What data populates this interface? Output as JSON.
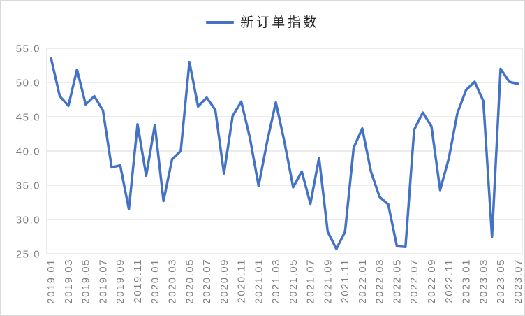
{
  "colors": {
    "line": "#4472C4",
    "gridline": "#D9D9D9",
    "plot_border": "#D9D9D9",
    "axis_label": "#7F7F7F",
    "legend_text": "#262626",
    "background": "#FFFFFF"
  },
  "legend": {
    "label": "新订单指数"
  },
  "chart_data": {
    "type": "line",
    "title": "",
    "xlabel": "",
    "ylabel": "",
    "legend_position": "top-center",
    "grid": "horizontal",
    "ylim": [
      25,
      55
    ],
    "yticks": [
      "55.0",
      "50.0",
      "45.0",
      "40.0",
      "35.0",
      "30.0",
      "25.0"
    ],
    "x_tick_labels": [
      "2019.01",
      "2019.03",
      "2019.05",
      "2019.07",
      "2019.09",
      "2019.11",
      "2020.01",
      "2020.03",
      "2020.05",
      "2020.07",
      "2020.09",
      "2020.11",
      "2021.01",
      "2021.03",
      "2021.05",
      "2021.07",
      "2021.09",
      "2021.11",
      "2022.01",
      "2022.03",
      "2022.05",
      "2022.07",
      "2022.09",
      "2022.11",
      "2023.01",
      "2023.03",
      "2023.05",
      "2023.07"
    ],
    "categories": [
      "2019.01",
      "2019.02",
      "2019.03",
      "2019.04",
      "2019.05",
      "2019.06",
      "2019.07",
      "2019.08",
      "2019.09",
      "2019.10",
      "2019.11",
      "2019.12",
      "2020.01",
      "2020.02",
      "2020.03",
      "2020.04",
      "2020.05",
      "2020.06",
      "2020.07",
      "2020.08",
      "2020.09",
      "2020.10",
      "2020.11",
      "2020.12",
      "2021.01",
      "2021.02",
      "2021.03",
      "2021.04",
      "2021.05",
      "2021.06",
      "2021.07",
      "2021.08",
      "2021.09",
      "2021.10",
      "2021.11",
      "2021.12",
      "2022.01",
      "2022.02",
      "2022.03",
      "2022.04",
      "2022.05",
      "2022.06",
      "2022.07",
      "2022.08",
      "2022.09",
      "2022.10",
      "2022.11",
      "2022.12",
      "2023.01",
      "2023.02",
      "2023.03",
      "2023.04",
      "2023.05",
      "2023.06",
      "2023.07"
    ],
    "series": [
      {
        "name": "新订单指数",
        "values": [
          53.5,
          48.0,
          46.6,
          51.9,
          46.8,
          48.0,
          45.9,
          37.6,
          37.9,
          31.5,
          43.9,
          36.4,
          43.8,
          32.7,
          38.8,
          40.0,
          53.0,
          46.5,
          47.8,
          46.0,
          36.7,
          45.1,
          47.2,
          41.9,
          34.9,
          41.4,
          47.1,
          41.3,
          34.7,
          37.0,
          32.3,
          39.0,
          28.2,
          25.7,
          28.2,
          40.5,
          43.3,
          37.0,
          33.3,
          32.2,
          26.1,
          26.0,
          43.1,
          45.6,
          43.6,
          34.3,
          38.9,
          45.5,
          48.9,
          50.1,
          47.3,
          27.5,
          52.0,
          50.1,
          49.8
        ]
      }
    ]
  }
}
